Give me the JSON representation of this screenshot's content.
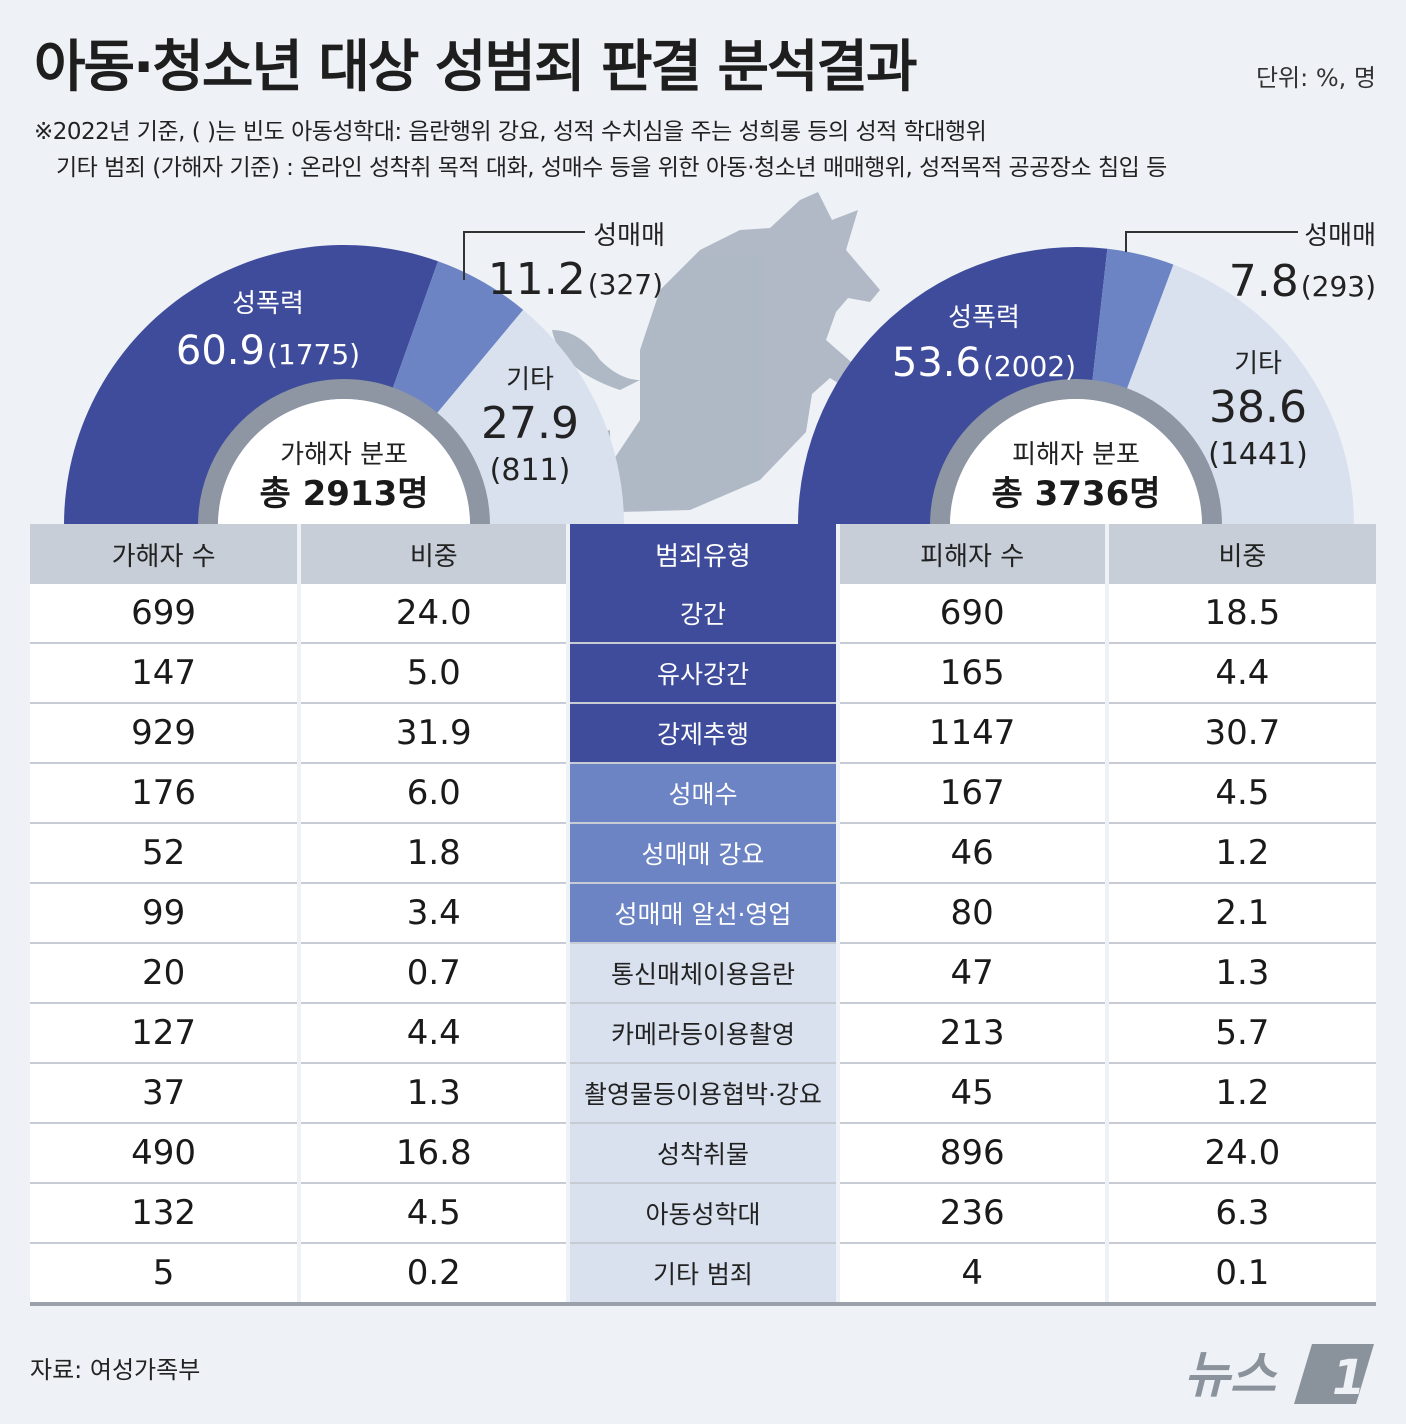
{
  "title": "아동·청소년 대상 성범죄 판결 분석결과",
  "unit": "단위: %, 명",
  "notes": [
    "※2022년 기준, ( )는 빈도 아동성학대: 음란행위 강요, 성적 수치심을 주는 성희롱 등의 성적 학대행위",
    "기타 범죄 (가해자 기준) : 온라인 성착취 목적 대화, 성매수 등을 위한 아동·청소년 매매행위, 성적목적 공공장소 침입 등"
  ],
  "colors": {
    "sexviolence": "#3f4c9c",
    "prostitution": "#6c84c4",
    "other": "#d9e1ee",
    "ring": "#8d96a2"
  },
  "chart_data": [
    {
      "type": "pie",
      "title": "가해자 분포",
      "total": "총 2913명",
      "slices": [
        {
          "name": "성폭력",
          "value": 60.9,
          "count": "(1775)",
          "value_label": "60.9"
        },
        {
          "name": "성매매",
          "value": 11.2,
          "count": "(327)",
          "value_label": "11.2"
        },
        {
          "name": "기타",
          "value": 27.9,
          "count": "(811)",
          "value_label": "27.9"
        }
      ]
    },
    {
      "type": "pie",
      "title": "피해자 분포",
      "total": "총 3736명",
      "slices": [
        {
          "name": "성폭력",
          "value": 53.6,
          "count": "(2002)",
          "value_label": "53.6"
        },
        {
          "name": "성매매",
          "value": 7.8,
          "count": "(293)",
          "value_label": "7.8"
        },
        {
          "name": "기타",
          "value": 38.6,
          "count": "(1441)",
          "value_label": "38.6"
        }
      ]
    },
    {
      "type": "table",
      "headers": [
        "가해자 수",
        "비중",
        "범죄유형",
        "피해자 수",
        "비중"
      ],
      "rows": [
        {
          "offender_count": "699",
          "offender_share": "24.0",
          "type": "강간",
          "victim_count": "690",
          "victim_share": "18.5",
          "group": "sexviolence"
        },
        {
          "offender_count": "147",
          "offender_share": "5.0",
          "type": "유사강간",
          "victim_count": "165",
          "victim_share": "4.4",
          "group": "sexviolence"
        },
        {
          "offender_count": "929",
          "offender_share": "31.9",
          "type": "강제추행",
          "victim_count": "1147",
          "victim_share": "30.7",
          "group": "sexviolence"
        },
        {
          "offender_count": "176",
          "offender_share": "6.0",
          "type": "성매수",
          "victim_count": "167",
          "victim_share": "4.5",
          "group": "prostitution"
        },
        {
          "offender_count": "52",
          "offender_share": "1.8",
          "type": "성매매 강요",
          "victim_count": "46",
          "victim_share": "1.2",
          "group": "prostitution"
        },
        {
          "offender_count": "99",
          "offender_share": "3.4",
          "type": "성매매 알선·영업",
          "victim_count": "80",
          "victim_share": "2.1",
          "group": "prostitution"
        },
        {
          "offender_count": "20",
          "offender_share": "0.7",
          "type": "통신매체이용음란",
          "victim_count": "47",
          "victim_share": "1.3",
          "group": "other"
        },
        {
          "offender_count": "127",
          "offender_share": "4.4",
          "type": "카메라등이용촬영",
          "victim_count": "213",
          "victim_share": "5.7",
          "group": "other"
        },
        {
          "offender_count": "37",
          "offender_share": "1.3",
          "type": "촬영물등이용협박·강요",
          "victim_count": "45",
          "victim_share": "1.2",
          "group": "other"
        },
        {
          "offender_count": "490",
          "offender_share": "16.8",
          "type": "성착취물",
          "victim_count": "896",
          "victim_share": "24.0",
          "group": "other"
        },
        {
          "offender_count": "132",
          "offender_share": "4.5",
          "type": "아동성학대",
          "victim_count": "236",
          "victim_share": "6.3",
          "group": "other"
        },
        {
          "offender_count": "5",
          "offender_share": "0.2",
          "type": "기타 범죄",
          "victim_count": "4",
          "victim_share": "0.1",
          "group": "other"
        }
      ]
    }
  ],
  "source": "자료: 여성가족부",
  "logo": {
    "text": "뉴스",
    "mark": "1"
  },
  "illustration_icon": "wolf-silhouette-icon"
}
